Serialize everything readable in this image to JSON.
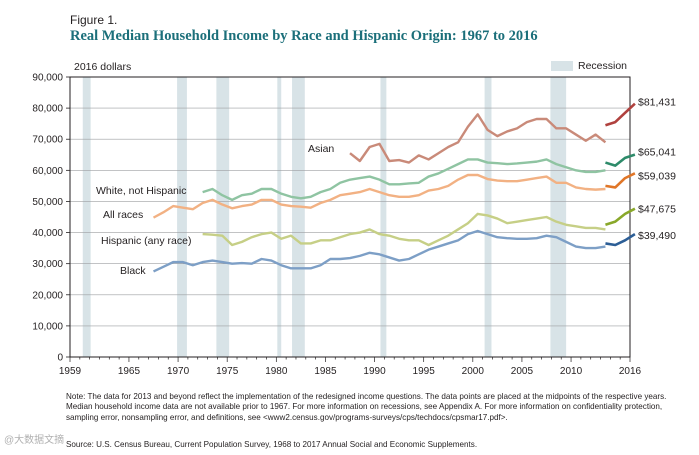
{
  "figure": {
    "label": "Figure 1.",
    "title": "Real Median Household Income by Race and Hispanic Origin: 1967 to 2016",
    "note": "Note: The data for 2013 and beyond reflect the implementation of the redesigned income questions. The data points are placed at the midpoints of the respective years. Median household income data are not available prior to 1967. For more information on recessions, see Appendix A. For more information on confidentiality protection, sampling error, nonsampling error, and definitions, see <www2.census.gov/programs-surveys/cps/techdocs/cpsmar17.pdf>.",
    "source": "Source: U.S. Census Bureau, Current Population Survey, 1968 to 2017 Annual Social and Economic Supplements.",
    "watermark": "@大数据文摘"
  },
  "chart_data": {
    "type": "line",
    "title": "Real Median Household Income by Race and Hispanic Origin: 1967 to 2016",
    "ylabel": "2016 dollars",
    "xlim": [
      1959,
      2016
    ],
    "ylim": [
      0,
      90000
    ],
    "xticks": [
      1959,
      1965,
      1970,
      1975,
      1980,
      1985,
      1990,
      1995,
      2000,
      2005,
      2010,
      2016
    ],
    "xtick_labels": [
      "1959",
      "1965",
      "1970",
      "1975",
      "1980",
      "1985",
      "1990",
      "1995",
      "2000",
      "2005",
      "2010",
      "2016"
    ],
    "yticks": [
      0,
      10000,
      20000,
      30000,
      40000,
      50000,
      60000,
      70000,
      80000,
      90000
    ],
    "ytick_labels": [
      "0",
      "10,000",
      "20,000",
      "30,000",
      "40,000",
      "50,000",
      "60,000",
      "70,000",
      "80,000",
      "90,000"
    ],
    "recession_label": "Recession",
    "recessions": [
      [
        1960.3,
        1961.1
      ],
      [
        1969.9,
        1970.9
      ],
      [
        1973.9,
        1975.2
      ],
      [
        1980.1,
        1980.5
      ],
      [
        1981.6,
        1982.9
      ],
      [
        1990.6,
        1991.2
      ],
      [
        2001.2,
        2001.9
      ],
      [
        2007.9,
        2009.5
      ]
    ],
    "colors": {
      "Asian": "#c98a79",
      "Asian_redesign": "#b0413e",
      "White, not Hispanic": "#8fc4a2",
      "White_redesign": "#2e8b6a",
      "All races": "#f2b183",
      "All_redesign": "#e07628",
      "Hispanic (any race)": "#c6cf86",
      "Hispanic_redesign": "#89a82a",
      "Black": "#7d9fc6",
      "Black_redesign": "#2c5e96",
      "Recession": "#d8e3e7"
    },
    "series": [
      {
        "name": "Asian",
        "label": "Asian",
        "x": [
          1987,
          1988,
          1989,
          1990,
          1991,
          1992,
          1993,
          1994,
          1995,
          1996,
          1997,
          1998,
          1999,
          2000,
          2001,
          2002,
          2003,
          2004,
          2005,
          2006,
          2007,
          2008,
          2009,
          2010,
          2011,
          2012,
          2013
        ],
        "values": [
          65500,
          63000,
          67500,
          68500,
          63000,
          63300,
          62500,
          64800,
          63500,
          65500,
          67500,
          69000,
          74000,
          78000,
          73000,
          71000,
          72500,
          73500,
          75500,
          76500,
          76500,
          73500,
          73500,
          71500,
          69500,
          71500,
          69000
        ],
        "redesign_x": [
          2013,
          2014,
          2015,
          2016
        ],
        "redesign_values": [
          74500,
          75500,
          78500,
          81431
        ],
        "end_label": "$81,431"
      },
      {
        "name": "White, not Hispanic",
        "label": "White, not Hispanic",
        "x": [
          1972,
          1973,
          1974,
          1975,
          1976,
          1977,
          1978,
          1979,
          1980,
          1981,
          1982,
          1983,
          1984,
          1985,
          1986,
          1987,
          1988,
          1989,
          1990,
          1991,
          1992,
          1993,
          1994,
          1995,
          1996,
          1997,
          1998,
          1999,
          2000,
          2001,
          2002,
          2003,
          2004,
          2005,
          2006,
          2007,
          2008,
          2009,
          2010,
          2011,
          2012,
          2013
        ],
        "values": [
          53000,
          54000,
          52000,
          50500,
          52000,
          52500,
          54000,
          54000,
          52500,
          51500,
          51000,
          51500,
          53000,
          54000,
          56000,
          57000,
          57500,
          58000,
          57000,
          55500,
          55500,
          55800,
          56000,
          58000,
          59000,
          60500,
          62000,
          63500,
          63500,
          62500,
          62300,
          62000,
          62200,
          62500,
          62800,
          63500,
          62000,
          61000,
          60000,
          59500,
          59500,
          60000
        ],
        "redesign_x": [
          2013,
          2014,
          2015,
          2016
        ],
        "redesign_values": [
          62500,
          61500,
          64000,
          65041
        ],
        "end_label": "$65,041"
      },
      {
        "name": "All races",
        "label": "All races",
        "x": [
          1967,
          1968,
          1969,
          1970,
          1971,
          1972,
          1973,
          1974,
          1975,
          1976,
          1977,
          1978,
          1979,
          1980,
          1981,
          1982,
          1983,
          1984,
          1985,
          1986,
          1987,
          1988,
          1989,
          1990,
          1991,
          1992,
          1993,
          1994,
          1995,
          1996,
          1997,
          1998,
          1999,
          2000,
          2001,
          2002,
          2003,
          2004,
          2005,
          2006,
          2007,
          2008,
          2009,
          2010,
          2011,
          2012,
          2013
        ],
        "values": [
          44800,
          46500,
          48500,
          48000,
          47500,
          49500,
          50500,
          49000,
          47800,
          48500,
          49000,
          50500,
          50500,
          49000,
          48500,
          48300,
          48000,
          49500,
          50500,
          52000,
          52500,
          53000,
          54000,
          53000,
          52000,
          51500,
          51500,
          52000,
          53500,
          54000,
          55000,
          57000,
          58500,
          58500,
          57200,
          56700,
          56500,
          56500,
          57000,
          57500,
          58000,
          56000,
          56000,
          54500,
          54000,
          53800,
          54000
        ],
        "redesign_x": [
          2013,
          2014,
          2015,
          2016
        ],
        "redesign_values": [
          55000,
          54500,
          57500,
          59039
        ],
        "end_label": "$59,039"
      },
      {
        "name": "Hispanic (any race)",
        "label": "Hispanic (any race)",
        "x": [
          1972,
          1973,
          1974,
          1975,
          1976,
          1977,
          1978,
          1979,
          1980,
          1981,
          1982,
          1983,
          1984,
          1985,
          1986,
          1987,
          1988,
          1989,
          1990,
          1991,
          1992,
          1993,
          1994,
          1995,
          1996,
          1997,
          1998,
          1999,
          2000,
          2001,
          2002,
          2003,
          2004,
          2005,
          2006,
          2007,
          2008,
          2009,
          2010,
          2011,
          2012,
          2013
        ],
        "values": [
          39500,
          39300,
          39000,
          36000,
          37000,
          38500,
          39500,
          40000,
          38000,
          39000,
          36500,
          36500,
          37500,
          37500,
          38500,
          39500,
          40000,
          41000,
          39500,
          39000,
          38000,
          37500,
          37500,
          36000,
          37500,
          39000,
          41000,
          43000,
          46000,
          45500,
          44500,
          43000,
          43500,
          44000,
          44500,
          45000,
          43500,
          42500,
          42000,
          41500,
          41500,
          41000
        ],
        "redesign_x": [
          2013,
          2014,
          2015,
          2016
        ],
        "redesign_values": [
          42500,
          43500,
          46000,
          47675
        ],
        "end_label": "$47,675"
      },
      {
        "name": "Black",
        "label": "Black",
        "x": [
          1967,
          1968,
          1969,
          1970,
          1971,
          1972,
          1973,
          1974,
          1975,
          1976,
          1977,
          1978,
          1979,
          1980,
          1981,
          1982,
          1983,
          1984,
          1985,
          1986,
          1987,
          1988,
          1989,
          1990,
          1991,
          1992,
          1993,
          1994,
          1995,
          1996,
          1997,
          1998,
          1999,
          2000,
          2001,
          2002,
          2003,
          2004,
          2005,
          2006,
          2007,
          2008,
          2009,
          2010,
          2011,
          2012,
          2013
        ],
        "values": [
          27500,
          29000,
          30500,
          30500,
          29500,
          30500,
          31000,
          30500,
          30000,
          30200,
          30000,
          31500,
          31000,
          29500,
          28500,
          28500,
          28500,
          29500,
          31500,
          31500,
          31800,
          32500,
          33500,
          33000,
          32000,
          31000,
          31500,
          33000,
          34500,
          35500,
          36500,
          37500,
          39500,
          40500,
          39500,
          38500,
          38200,
          38000,
          38000,
          38200,
          39000,
          38500,
          37000,
          35500,
          35000,
          35000,
          35500
        ],
        "redesign_x": [
          2013,
          2014,
          2015,
          2016
        ],
        "redesign_values": [
          36500,
          36000,
          37500,
          39490
        ],
        "end_label": "$39,490"
      }
    ]
  }
}
